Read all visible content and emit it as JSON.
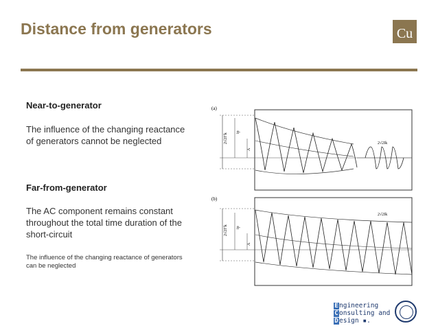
{
  "slide": {
    "title": "Distance from generators",
    "badge": "Cu",
    "accent_color": "#8b7650"
  },
  "left": {
    "near_heading": "Near-to-generator",
    "near_line1": "The influence of the changing reactance",
    "near_line2": "of generators cannot be neglected",
    "far_heading": "Far-from-generator",
    "far_line1": "The AC component remains constant",
    "far_line2": "throughout the total time duration of the",
    "far_line3": "short-circuit",
    "far_note1": "The influence of the changing reactance of generators",
    "far_note2": "can be neglected"
  },
  "figure": {
    "label_a": "(a)",
    "label_b": "(b)",
    "amp_a": "2√2I\"k",
    "amp_end_a": "2√2Ik",
    "amp_b": "2√2I\"k",
    "amp_end_b": "2√2Ik",
    "ip_label": "ip",
    "a_label": "A"
  },
  "logo": {
    "line1_initial": "E",
    "line1_rest": "ngineering",
    "line2_initial": "C",
    "line2_rest": "onsulting and",
    "line3_initial": "D",
    "line3_rest": "esign",
    "mark": "▪."
  }
}
